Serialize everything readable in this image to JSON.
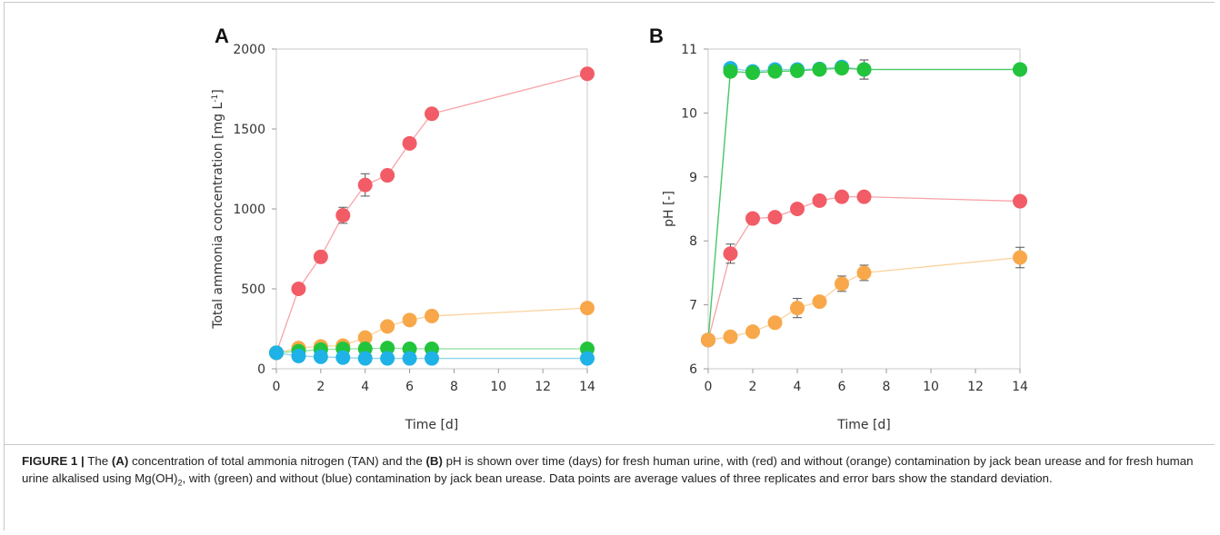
{
  "chart_data": [
    {
      "type": "scatter",
      "panel_label": "A",
      "xlabel": "Time [d]",
      "ylabel": "Total ammonia concentration [mg L",
      "ylabel_sup": "-1",
      "ylabel_end": "]",
      "xlim": [
        0,
        14
      ],
      "ylim": [
        0,
        2000
      ],
      "xticks": [
        0,
        2,
        4,
        6,
        8,
        10,
        12,
        14
      ],
      "yticks": [
        0,
        500,
        1000,
        1500,
        2000
      ],
      "grid": false,
      "series": [
        {
          "color": "#f25c66",
          "line": "#f7a3a8",
          "x": [
            0,
            1,
            2,
            3,
            4,
            5,
            6,
            7,
            14
          ],
          "y": [
            100,
            500,
            700,
            960,
            1150,
            1210,
            1410,
            1595,
            1845
          ],
          "err": [
            0,
            10,
            10,
            50,
            70,
            20,
            15,
            15,
            15
          ]
        },
        {
          "color": "#f8a84a",
          "line": "#fad29c",
          "x": [
            0,
            1,
            2,
            3,
            4,
            5,
            6,
            7,
            14
          ],
          "y": [
            100,
            130,
            140,
            145,
            195,
            265,
            305,
            330,
            380
          ],
          "err": [
            0,
            10,
            10,
            15,
            15,
            15,
            20,
            20,
            15
          ]
        },
        {
          "color": "#22c43c",
          "line": "#8ee09b",
          "x": [
            0,
            1,
            2,
            3,
            4,
            5,
            6,
            7,
            14
          ],
          "y": [
            100,
            110,
            120,
            125,
            125,
            130,
            125,
            125,
            125
          ],
          "err": [
            0,
            5,
            5,
            5,
            5,
            5,
            5,
            5,
            5
          ]
        },
        {
          "color": "#1fb2e6",
          "line": "#8fd5ef",
          "x": [
            0,
            1,
            2,
            3,
            4,
            5,
            6,
            7,
            14
          ],
          "y": [
            100,
            80,
            75,
            70,
            65,
            65,
            65,
            65,
            65
          ],
          "err": [
            0,
            5,
            5,
            5,
            5,
            5,
            5,
            5,
            5
          ]
        }
      ]
    },
    {
      "type": "scatter",
      "panel_label": "B",
      "xlabel": "Time [d]",
      "ylabel": "pH [-]",
      "xlim": [
        0,
        14
      ],
      "ylim": [
        6,
        11
      ],
      "xticks": [
        0,
        2,
        4,
        6,
        8,
        10,
        12,
        14
      ],
      "yticks": [
        6,
        7,
        8,
        9,
        10,
        11
      ],
      "grid": false,
      "series": [
        {
          "color": "#1fb2e6",
          "line": "#8fd5ef",
          "x": [
            0,
            1,
            2,
            3,
            4,
            5,
            6,
            7,
            14
          ],
          "y": [
            6.45,
            10.7,
            10.65,
            10.68,
            10.68,
            10.69,
            10.72,
            10.68,
            10.68
          ],
          "err": [
            0,
            0.03,
            0.03,
            0.03,
            0.03,
            0.03,
            0.03,
            0.15,
            0.03
          ]
        },
        {
          "color": "#22c43c",
          "line": "#4cc95e",
          "x": [
            0,
            1,
            2,
            3,
            4,
            5,
            6,
            7,
            14
          ],
          "y": [
            6.45,
            10.65,
            10.63,
            10.65,
            10.66,
            10.68,
            10.7,
            10.68,
            10.68
          ],
          "err": [
            0,
            0.03,
            0.03,
            0.03,
            0.03,
            0.03,
            0.03,
            0.15,
            0.03
          ]
        },
        {
          "color": "#f25c66",
          "line": "#f7a3a8",
          "x": [
            0,
            1,
            2,
            3,
            4,
            5,
            6,
            7,
            14
          ],
          "y": [
            6.45,
            7.8,
            8.35,
            8.37,
            8.5,
            8.63,
            8.69,
            8.69,
            8.62
          ],
          "err": [
            0,
            0.15,
            0.05,
            0.05,
            0.05,
            0.05,
            0.05,
            0.05,
            0.05
          ]
        },
        {
          "color": "#f8a84a",
          "line": "#fad29c",
          "x": [
            0,
            1,
            2,
            3,
            4,
            5,
            6,
            7,
            14
          ],
          "y": [
            6.45,
            6.5,
            6.58,
            6.72,
            6.95,
            7.05,
            7.33,
            7.5,
            7.74
          ],
          "err": [
            0,
            0.05,
            0.05,
            0.05,
            0.15,
            0.05,
            0.12,
            0.12,
            0.16
          ]
        }
      ]
    }
  ],
  "caption": {
    "lead": "FIGURE 1 |",
    "t1": " The ",
    "a": "(A)",
    "t2": " concentration of total ammonia nitrogen (TAN) and the ",
    "b": "(B)",
    "t3": " pH is shown over time (days) for fresh human urine, with (red) and without (orange) contamination by jack bean urease and for fresh human urine alkalised using Mg(OH)",
    "sub": "2",
    "t4": ", with (green) and without (blue) contamination by jack bean urease. Data points are average values of three replicates and error bars show the standard deviation."
  }
}
